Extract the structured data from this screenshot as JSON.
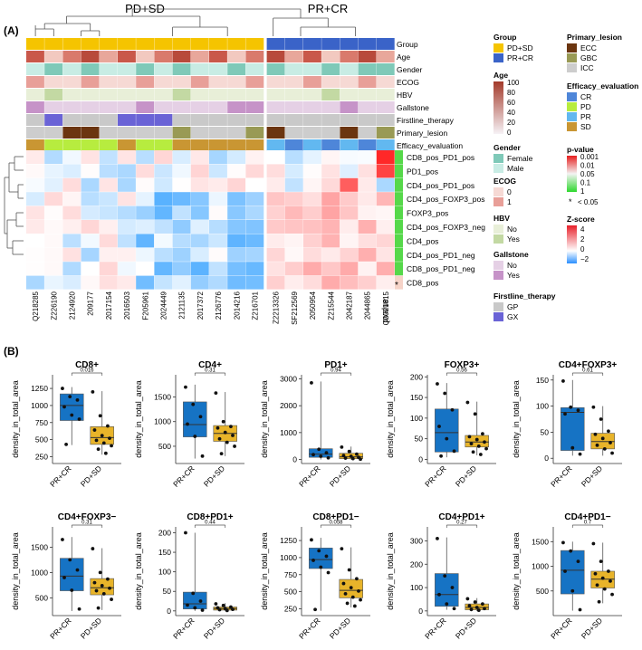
{
  "panelA": {
    "label": "(A)",
    "groups_left": "PD+SD",
    "groups_right": "PR+CR",
    "annotation_rows": [
      "Group",
      "Age",
      "Gender",
      "ECOG",
      "HBV",
      "Gallstone",
      "Firstline_therapy",
      "Primary_lesion",
      "Efficacy_evaluation"
    ],
    "heatmap_rows": [
      "CD8_pos_PD1_pos",
      "PD1_pos",
      "CD4_pos_PD1_pos",
      "CD4_pos_FOXP3_pos",
      "FOXP3_pos",
      "CD4_pos_FOXP3_neg",
      "CD4_pos",
      "CD4_pos_PD1_neg",
      "CD8_pos_PD1_neg",
      "CD8_pos"
    ],
    "samples": [
      "Q218285",
      "Z226190",
      "2124920",
      "209177",
      "2017154",
      "2016503",
      "F205961",
      "2024449",
      "2121135",
      "2017372",
      "2126776",
      "2014216",
      "Z216701",
      "Z2213326",
      "SF212569",
      "2050954",
      "Z215544",
      "2042187",
      "2044865",
      "Q2021815"
    ],
    "pvalue_label": "pvalue",
    "star": "*"
  },
  "legends": {
    "group": {
      "title": "Group",
      "items": [
        {
          "label": "PD+SD",
          "color": "#f5c400"
        },
        {
          "label": "PR+CR",
          "color": "#3a63c8"
        }
      ]
    },
    "age": {
      "title": "Age",
      "ticks": [
        "100",
        "80",
        "60",
        "40",
        "20",
        "0"
      ]
    },
    "gender": {
      "title": "Gender",
      "items": [
        {
          "label": "Female",
          "color": "#7fc9b8"
        },
        {
          "label": "Male",
          "color": "#c8ece4"
        }
      ]
    },
    "ecog": {
      "title": "ECOG",
      "items": [
        {
          "label": "0",
          "color": "#f6d9d4"
        },
        {
          "label": "1",
          "color": "#e89f98"
        }
      ]
    },
    "hbv": {
      "title": "HBV",
      "items": [
        {
          "label": "No",
          "color": "#e8efd8"
        },
        {
          "label": "Yes",
          "color": "#c3d9a3"
        }
      ]
    },
    "gallstone": {
      "title": "Gallstone",
      "items": [
        {
          "label": "No",
          "color": "#e5d0e5"
        },
        {
          "label": "Yes",
          "color": "#c693c8"
        }
      ]
    },
    "firstline": {
      "title": "Firstline_therapy",
      "items": [
        {
          "label": "GP",
          "color": "#c9c9c9"
        },
        {
          "label": "GX",
          "color": "#6a63d6"
        }
      ]
    },
    "primary": {
      "title": "Primary_lesion",
      "items": [
        {
          "label": "ECC",
          "color": "#6b3510"
        },
        {
          "label": "GBC",
          "color": "#999a55"
        },
        {
          "label": "ICC",
          "color": "#cdcdcd"
        }
      ]
    },
    "efficacy": {
      "title": "Efficacy_evaluation",
      "items": [
        {
          "label": "CR",
          "color": "#4e86d9"
        },
        {
          "label": "PD",
          "color": "#b7ec3f"
        },
        {
          "label": "PR",
          "color": "#62b8f0"
        },
        {
          "label": "SD",
          "color": "#c99633"
        }
      ]
    },
    "pvalue": {
      "title": "p-value",
      "ticks": [
        "0.001",
        "0.01",
        "0.05",
        "0.1",
        "1"
      ],
      "sig": "< 0.05"
    },
    "zscore": {
      "title": "Z-score",
      "ticks": [
        "4",
        "2",
        "0",
        "−2"
      ]
    }
  },
  "panelB": {
    "label": "(B)",
    "ylabel": "density_in_total_area",
    "categories": [
      "PR+CR",
      "PD+SD"
    ]
  },
  "chart_data": [
    {
      "type": "box",
      "title": "CD8+",
      "pvalue": "0.016",
      "ylim": [
        150,
        1450
      ],
      "yticks": [
        250,
        500,
        750,
        1000,
        1250
      ],
      "boxes": [
        {
          "group": "PR+CR",
          "q1": 780,
          "median": 1000,
          "q3": 1170,
          "min": 420,
          "max": 1270,
          "points": [
            1250,
            1130,
            1080,
            980,
            860,
            800,
            430
          ]
        },
        {
          "group": "PD+SD",
          "q1": 430,
          "median": 530,
          "q3": 690,
          "min": 280,
          "max": 1210,
          "points": [
            1200,
            850,
            700,
            640,
            560,
            520,
            490,
            450,
            410,
            360,
            300
          ]
        }
      ]
    },
    {
      "type": "box",
      "title": "CD4+",
      "pvalue": "0.31",
      "ylim": [
        150,
        1950
      ],
      "yticks": [
        500,
        1000,
        1500
      ],
      "boxes": [
        {
          "group": "PR+CR",
          "q1": 690,
          "median": 940,
          "q3": 1400,
          "min": 250,
          "max": 1750,
          "points": [
            1700,
            1350,
            1100,
            950,
            700,
            300
          ]
        },
        {
          "group": "PD+SD",
          "q1": 600,
          "median": 760,
          "q3": 920,
          "min": 300,
          "max": 1600,
          "points": [
            1580,
            1000,
            900,
            870,
            780,
            720,
            650,
            580,
            500,
            350
          ]
        }
      ]
    },
    {
      "type": "box",
      "title": "PD1+",
      "pvalue": "0.94",
      "ylim": [
        -150,
        3150
      ],
      "yticks": [
        0,
        1000,
        2000,
        3000
      ],
      "boxes": [
        {
          "group": "PR+CR",
          "q1": 80,
          "median": 200,
          "q3": 400,
          "min": 0,
          "max": 2900,
          "points": [
            2850,
            380,
            250,
            180,
            120,
            60
          ]
        },
        {
          "group": "PD+SD",
          "q1": 30,
          "median": 100,
          "q3": 230,
          "min": 0,
          "max": 480,
          "points": [
            460,
            300,
            200,
            150,
            120,
            80,
            50,
            30,
            10
          ]
        }
      ]
    },
    {
      "type": "box",
      "title": "FOXP3+",
      "pvalue": "0.56",
      "ylim": [
        -10,
        205
      ],
      "yticks": [
        0,
        50,
        100,
        150,
        200
      ],
      "boxes": [
        {
          "group": "PR+CR",
          "q1": 18,
          "median": 65,
          "q3": 122,
          "min": 5,
          "max": 185,
          "points": [
            183,
            160,
            120,
            80,
            50,
            20,
            8
          ]
        },
        {
          "group": "PD+SD",
          "q1": 30,
          "median": 42,
          "q3": 58,
          "min": 10,
          "max": 140,
          "points": [
            138,
            110,
            62,
            55,
            48,
            42,
            38,
            32,
            26,
            18,
            12
          ]
        }
      ]
    },
    {
      "type": "box",
      "title": "CD4+FOXP3+",
      "pvalue": "0.61",
      "ylim": [
        -10,
        160
      ],
      "yticks": [
        0,
        50,
        100,
        150
      ],
      "boxes": [
        {
          "group": "PR+CR",
          "q1": 15,
          "median": 88,
          "q3": 97,
          "min": 5,
          "max": 150,
          "points": [
            148,
            98,
            92,
            85,
            20,
            8
          ]
        },
        {
          "group": "PD+SD",
          "q1": 18,
          "median": 32,
          "q3": 48,
          "min": 5,
          "max": 100,
          "points": [
            98,
            75,
            52,
            46,
            38,
            30,
            25,
            18,
            10
          ]
        }
      ]
    },
    {
      "type": "box",
      "title": "CD4+FOXP3−",
      "pvalue": "0.31",
      "ylim": [
        150,
        1900
      ],
      "yticks": [
        500,
        1000,
        1500
      ],
      "boxes": [
        {
          "group": "PR+CR",
          "q1": 640,
          "median": 930,
          "q3": 1280,
          "min": 240,
          "max": 1700,
          "points": [
            1650,
            1250,
            1050,
            900,
            650,
            280
          ]
        },
        {
          "group": "PD+SD",
          "q1": 560,
          "median": 700,
          "q3": 880,
          "min": 260,
          "max": 1480,
          "points": [
            1470,
            1000,
            870,
            800,
            740,
            690,
            640,
            580,
            470,
            300
          ]
        }
      ]
    },
    {
      "type": "box",
      "title": "CD8+PD1+",
      "pvalue": "0.44",
      "ylim": [
        -12,
        215
      ],
      "yticks": [
        0,
        50,
        100,
        150,
        200
      ],
      "boxes": [
        {
          "group": "PR+CR",
          "q1": 5,
          "median": 18,
          "q3": 48,
          "min": 0,
          "max": 200,
          "points": [
            200,
            45,
            25,
            15,
            8,
            2
          ]
        },
        {
          "group": "PD+SD",
          "q1": 2,
          "median": 6,
          "q3": 10,
          "min": 0,
          "max": 20,
          "points": [
            18,
            14,
            10,
            8,
            6,
            4,
            3,
            1
          ]
        }
      ]
    },
    {
      "type": "box",
      "title": "CD8+PD1−",
      "pvalue": "0.058",
      "ylim": [
        150,
        1450
      ],
      "yticks": [
        250,
        500,
        750,
        1000,
        1250
      ],
      "boxes": [
        {
          "group": "PR+CR",
          "q1": 840,
          "median": 970,
          "q3": 1140,
          "min": 220,
          "max": 1290,
          "points": [
            1260,
            1100,
            1020,
            960,
            860,
            780,
            240
          ]
        },
        {
          "group": "PD+SD",
          "q1": 410,
          "median": 520,
          "q3": 680,
          "min": 270,
          "max": 1150,
          "points": [
            1130,
            820,
            690,
            620,
            560,
            510,
            470,
            420,
            380,
            330,
            290
          ]
        }
      ]
    },
    {
      "type": "box",
      "title": "CD4+PD1+",
      "pvalue": "0.27",
      "ylim": [
        -20,
        360
      ],
      "yticks": [
        0,
        100,
        200,
        300
      ],
      "boxes": [
        {
          "group": "PR+CR",
          "q1": 20,
          "median": 70,
          "q3": 160,
          "min": 5,
          "max": 315,
          "points": [
            310,
            150,
            100,
            70,
            30,
            10
          ]
        },
        {
          "group": "PD+SD",
          "q1": 5,
          "median": 15,
          "q3": 30,
          "min": 0,
          "max": 55,
          "points": [
            52,
            38,
            30,
            22,
            15,
            10,
            6,
            3
          ]
        }
      ]
    },
    {
      "type": "box",
      "title": "CD4+PD1−",
      "pvalue": "0.7",
      "ylim": [
        0,
        1800
      ],
      "yticks": [
        500,
        1000,
        1500
      ],
      "boxes": [
        {
          "group": "PR+CR",
          "q1": 440,
          "median": 920,
          "q3": 1320,
          "min": 100,
          "max": 1500,
          "points": [
            1480,
            1310,
            1100,
            900,
            500,
            120
          ]
        },
        {
          "group": "PD+SD",
          "q1": 560,
          "median": 740,
          "q3": 900,
          "min": 250,
          "max": 1480,
          "points": [
            1460,
            1100,
            900,
            850,
            760,
            700,
            620,
            540,
            430,
            280
          ]
        }
      ]
    }
  ]
}
